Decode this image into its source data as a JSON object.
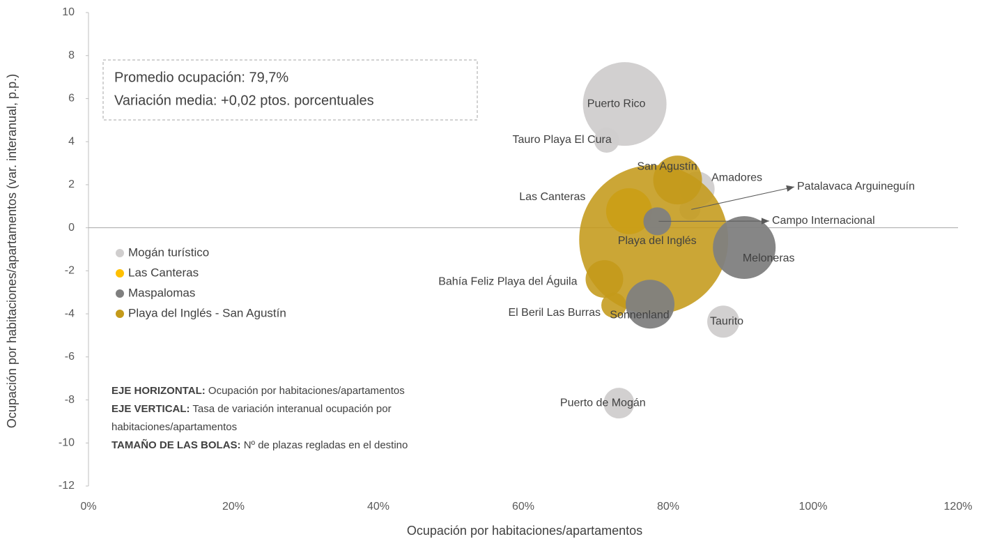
{
  "chart_data": {
    "type": "bubble",
    "xlabel": "Ocupación por habitaciones/apartamentos",
    "ylabel": "Ocupación por habitaciones/apartamentos (var. interanual, p.p.)",
    "xlim": [
      0,
      120
    ],
    "ylim": [
      -12,
      10
    ],
    "xticks": [
      {
        "value": 0,
        "label": "0%"
      },
      {
        "value": 20,
        "label": "20%"
      },
      {
        "value": 40,
        "label": "40%"
      },
      {
        "value": 60,
        "label": "60%"
      },
      {
        "value": 80,
        "label": "80%"
      },
      {
        "value": 100,
        "label": "100%"
      },
      {
        "value": 120,
        "label": "120%"
      }
    ],
    "yticks": [
      -12,
      -10,
      -8,
      -6,
      -4,
      -2,
      0,
      2,
      4,
      6,
      8,
      10
    ],
    "annotation_box": [
      "Promedio ocupación: 79,7%",
      "Variación media: +0,02 ptos. porcentuales"
    ],
    "notes": [
      {
        "bold": "EJE HORIZONTAL:",
        "text": " Ocupación por habitaciones/apartamentos"
      },
      {
        "bold": "EJE VERTICAL:",
        "text": " Tasa de variación interanual ocupación por"
      },
      {
        "text": "habitaciones/apartamentos"
      },
      {
        "bold": "TAMAÑO DE LAS BOLAS:",
        "text": " Nº de plazas regladas en el destino"
      }
    ],
    "series": [
      {
        "name": "Mogán turístico",
        "color": "#d0cece",
        "labels": [
          "Puerto Rico",
          "Tauro Playa El Cura",
          "Amadores",
          "Patalavaca Arguineguín",
          "Taurito",
          "Puerto de Mogán"
        ],
        "x": [
          74.0,
          71.5,
          84.0,
          83.0,
          87.6,
          73.2
        ],
        "values": [
          5.75,
          4.07,
          1.8,
          0.85,
          -4.36,
          -8.15
        ],
        "sizes": [
          11900,
          1070,
          2070,
          744,
          1750,
          1600
        ]
      },
      {
        "name": "Las Canteras",
        "color": "#ffc000",
        "labels": [
          "Las Canteras"
        ],
        "x": [
          74.6
        ],
        "values": [
          0.77
        ],
        "sizes": [
          3600
        ]
      },
      {
        "name": "Maspalomas",
        "color": "#7f7f7f",
        "labels": [
          "Campo Internacional",
          "Meloneras",
          "Sonnenland"
        ],
        "x": [
          78.5,
          90.5,
          77.5
        ],
        "values": [
          0.3,
          -0.92,
          -3.55
        ],
        "sizes": [
          1320,
          6700,
          4050
        ]
      },
      {
        "name": "Playa del Inglés - San Agustín",
        "color": "#c49a1a",
        "labels": [
          "Playa del Inglés",
          "San Agustín",
          "Bahía Feliz Playa del Águila",
          "El Beril Las Burras"
        ],
        "x": [
          78.0,
          81.3,
          71.2,
          72.5
        ],
        "values": [
          -0.55,
          2.22,
          -2.38,
          -3.6
        ],
        "sizes": [
          37800,
          4050,
          2410,
          1070
        ]
      }
    ]
  }
}
